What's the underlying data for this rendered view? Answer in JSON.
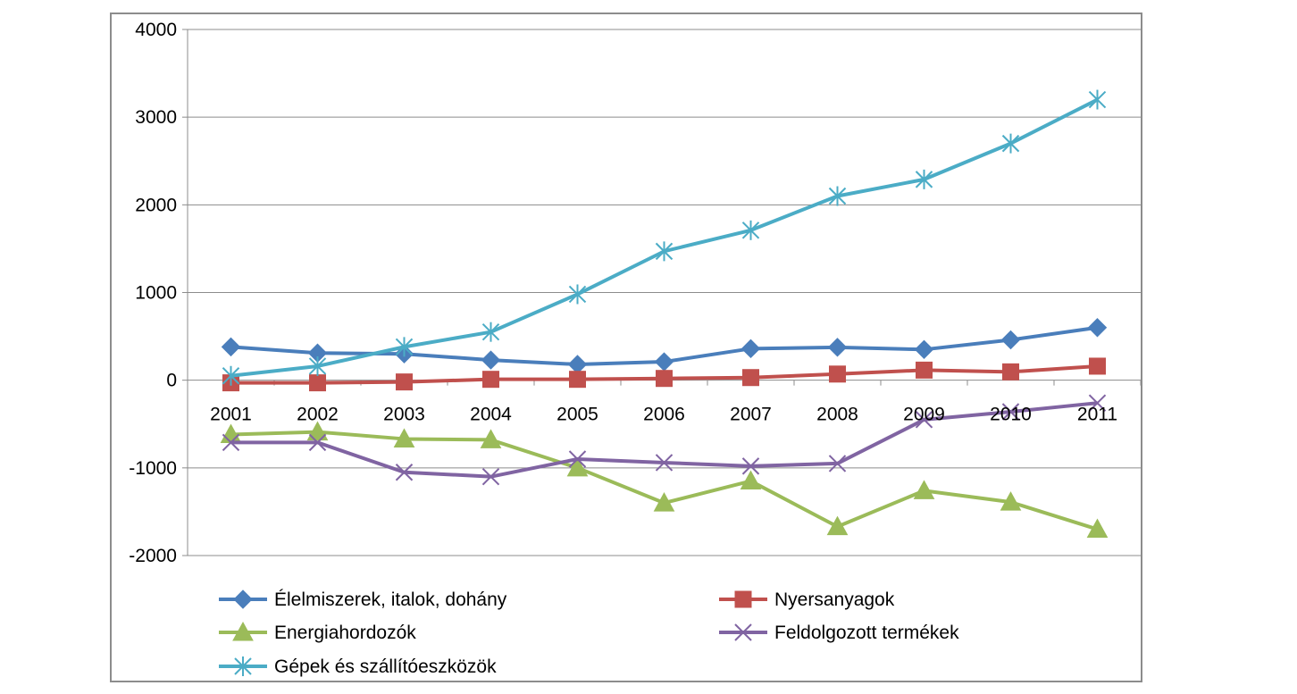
{
  "chart_data": {
    "type": "line",
    "title": "",
    "xlabel": "",
    "ylabel": "",
    "categories": [
      "2001",
      "2002",
      "2003",
      "2004",
      "2005",
      "2006",
      "2007",
      "2008",
      "2009",
      "2010",
      "2011"
    ],
    "ylim": [
      -2000,
      4000
    ],
    "yticks": [
      4000,
      3000,
      2000,
      1000,
      0,
      -1000,
      -2000
    ],
    "ytick_labels": [
      "4000",
      "3000",
      "2000",
      "1000",
      "0",
      "-1000",
      "-2000"
    ],
    "grid": true,
    "legend_position": "bottom",
    "series": [
      {
        "name": "Élelmiszerek, italok, dohány",
        "color": "#4a7ebb",
        "marker": "diamond",
        "values": [
          380,
          310,
          300,
          230,
          180,
          210,
          360,
          375,
          350,
          460,
          600
        ]
      },
      {
        "name": "Nyersanyagok",
        "color": "#c0504d",
        "marker": "square",
        "values": [
          -30,
          -30,
          -20,
          10,
          10,
          20,
          30,
          70,
          115,
          95,
          160
        ]
      },
      {
        "name": "Energiahordozók",
        "color": "#9bbb59",
        "marker": "triangle",
        "values": [
          -620,
          -590,
          -670,
          -680,
          -1000,
          -1400,
          -1150,
          -1670,
          -1260,
          -1390,
          -1700
        ]
      },
      {
        "name": "Feldolgozott termékek",
        "color": "#8064a2",
        "marker": "x",
        "values": [
          -710,
          -710,
          -1050,
          -1100,
          -900,
          -940,
          -980,
          -950,
          -450,
          -360,
          -260
        ]
      },
      {
        "name": "Gépek és szállítóeszközök",
        "color": "#4bacc6",
        "marker": "star",
        "values": [
          50,
          160,
          380,
          550,
          980,
          1470,
          1710,
          2100,
          2290,
          2700,
          3200
        ]
      }
    ]
  }
}
